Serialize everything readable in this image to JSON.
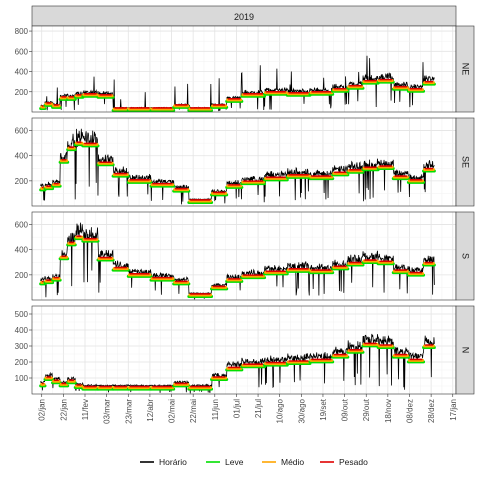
{
  "chart_data": {
    "type": "line",
    "title": "",
    "xlabel": "",
    "ylabel": "",
    "facet_column_label": "2019",
    "x_ticks": [
      "02/jan",
      "22/jan",
      "11/fev",
      "03/mar",
      "23/mar",
      "12/abr",
      "02/mai",
      "22/mai",
      "11/jun",
      "01/jul",
      "21/jul",
      "10/ago",
      "30/ago",
      "19/set",
      "09/out",
      "29/out",
      "18/nov",
      "08/dez",
      "28/dez",
      "17/jan"
    ],
    "x_tick_dates": [
      "2019-01-02",
      "2019-01-22",
      "2019-02-11",
      "2019-03-03",
      "2019-03-23",
      "2019-04-12",
      "2019-05-02",
      "2019-05-22",
      "2019-06-11",
      "2019-07-01",
      "2019-07-21",
      "2019-08-10",
      "2019-08-30",
      "2019-09-19",
      "2019-10-09",
      "2019-10-29",
      "2019-11-18",
      "2019-12-08",
      "2019-12-28",
      "2020-01-17"
    ],
    "xlim": [
      "2018-12-24",
      "2020-01-20"
    ],
    "grid": true,
    "legend_position": "bottom",
    "legend": [
      {
        "name": "Horário",
        "color": "#000000"
      },
      {
        "name": "Leve",
        "color": "#00e000"
      },
      {
        "name": "Médio",
        "color": "#ffa500"
      },
      {
        "name": "Pesado",
        "color": "#e00000"
      }
    ],
    "panels": [
      {
        "name": "NE",
        "ylim": [
          0,
          850
        ],
        "yticks": [
          200,
          400,
          600,
          800
        ],
        "segments": [
          {
            "start": "2019-01-01",
            "end": "2019-01-05",
            "value": 50
          },
          {
            "start": "2019-01-05",
            "end": "2019-01-12",
            "value": 80
          },
          {
            "start": "2019-01-12",
            "end": "2019-01-19",
            "value": 60
          },
          {
            "start": "2019-01-19",
            "end": "2019-01-26",
            "value": 140
          },
          {
            "start": "2019-01-26",
            "end": "2019-02-02",
            "value": 140
          },
          {
            "start": "2019-02-02",
            "end": "2019-02-09",
            "value": 160
          },
          {
            "start": "2019-02-09",
            "end": "2019-02-23",
            "value": 170
          },
          {
            "start": "2019-02-23",
            "end": "2019-03-09",
            "value": 160
          },
          {
            "start": "2019-03-09",
            "end": "2019-03-23",
            "value": 30
          },
          {
            "start": "2019-03-23",
            "end": "2019-04-13",
            "value": 30
          },
          {
            "start": "2019-04-13",
            "end": "2019-05-04",
            "value": 30
          },
          {
            "start": "2019-05-04",
            "end": "2019-05-18",
            "value": 60
          },
          {
            "start": "2019-05-18",
            "end": "2019-06-08",
            "value": 30
          },
          {
            "start": "2019-06-08",
            "end": "2019-06-22",
            "value": 60
          },
          {
            "start": "2019-06-22",
            "end": "2019-07-06",
            "value": 120
          },
          {
            "start": "2019-07-06",
            "end": "2019-07-27",
            "value": 170
          },
          {
            "start": "2019-07-27",
            "end": "2019-08-17",
            "value": 190
          },
          {
            "start": "2019-08-17",
            "end": "2019-09-07",
            "value": 180
          },
          {
            "start": "2019-09-07",
            "end": "2019-09-28",
            "value": 190
          },
          {
            "start": "2019-09-28",
            "end": "2019-10-12",
            "value": 220
          },
          {
            "start": "2019-10-12",
            "end": "2019-10-26",
            "value": 250
          },
          {
            "start": "2019-10-26",
            "end": "2019-11-09",
            "value": 300
          },
          {
            "start": "2019-11-09",
            "end": "2019-11-23",
            "value": 310
          },
          {
            "start": "2019-11-23",
            "end": "2019-12-07",
            "value": 240
          },
          {
            "start": "2019-12-07",
            "end": "2019-12-21",
            "value": 220
          },
          {
            "start": "2019-12-21",
            "end": "2019-12-31",
            "value": 290
          }
        ]
      },
      {
        "name": "SE",
        "ylim": [
          0,
          700
        ],
        "yticks": [
          200,
          400,
          600
        ],
        "segments": [
          {
            "start": "2019-01-01",
            "end": "2019-01-05",
            "value": 140
          },
          {
            "start": "2019-01-05",
            "end": "2019-01-12",
            "value": 150
          },
          {
            "start": "2019-01-12",
            "end": "2019-01-19",
            "value": 170
          },
          {
            "start": "2019-01-19",
            "end": "2019-01-26",
            "value": 360
          },
          {
            "start": "2019-01-26",
            "end": "2019-02-02",
            "value": 460
          },
          {
            "start": "2019-02-02",
            "end": "2019-02-09",
            "value": 500
          },
          {
            "start": "2019-02-09",
            "end": "2019-02-23",
            "value": 490
          },
          {
            "start": "2019-02-23",
            "end": "2019-03-09",
            "value": 340
          },
          {
            "start": "2019-03-09",
            "end": "2019-03-23",
            "value": 250
          },
          {
            "start": "2019-03-23",
            "end": "2019-04-13",
            "value": 200
          },
          {
            "start": "2019-04-13",
            "end": "2019-05-04",
            "value": 170
          },
          {
            "start": "2019-05-04",
            "end": "2019-05-18",
            "value": 130
          },
          {
            "start": "2019-05-18",
            "end": "2019-06-08",
            "value": 40
          },
          {
            "start": "2019-06-08",
            "end": "2019-06-22",
            "value": 100
          },
          {
            "start": "2019-06-22",
            "end": "2019-07-06",
            "value": 160
          },
          {
            "start": "2019-07-06",
            "end": "2019-07-27",
            "value": 190
          },
          {
            "start": "2019-07-27",
            "end": "2019-08-17",
            "value": 220
          },
          {
            "start": "2019-08-17",
            "end": "2019-09-07",
            "value": 240
          },
          {
            "start": "2019-09-07",
            "end": "2019-09-28",
            "value": 230
          },
          {
            "start": "2019-09-28",
            "end": "2019-10-12",
            "value": 260
          },
          {
            "start": "2019-10-12",
            "end": "2019-10-26",
            "value": 280
          },
          {
            "start": "2019-10-26",
            "end": "2019-11-09",
            "value": 300
          },
          {
            "start": "2019-11-09",
            "end": "2019-11-23",
            "value": 310
          },
          {
            "start": "2019-11-23",
            "end": "2019-12-07",
            "value": 230
          },
          {
            "start": "2019-12-07",
            "end": "2019-12-21",
            "value": 200
          },
          {
            "start": "2019-12-21",
            "end": "2019-12-31",
            "value": 290
          }
        ]
      },
      {
        "name": "S",
        "ylim": [
          0,
          700
        ],
        "yticks": [
          200,
          400,
          600
        ],
        "segments": [
          {
            "start": "2019-01-01",
            "end": "2019-01-05",
            "value": 140
          },
          {
            "start": "2019-01-05",
            "end": "2019-01-12",
            "value": 150
          },
          {
            "start": "2019-01-12",
            "end": "2019-01-19",
            "value": 170
          },
          {
            "start": "2019-01-19",
            "end": "2019-01-26",
            "value": 340
          },
          {
            "start": "2019-01-26",
            "end": "2019-02-02",
            "value": 450
          },
          {
            "start": "2019-02-02",
            "end": "2019-02-09",
            "value": 500
          },
          {
            "start": "2019-02-09",
            "end": "2019-02-23",
            "value": 480
          },
          {
            "start": "2019-02-23",
            "end": "2019-03-09",
            "value": 330
          },
          {
            "start": "2019-03-09",
            "end": "2019-03-23",
            "value": 250
          },
          {
            "start": "2019-03-23",
            "end": "2019-04-13",
            "value": 200
          },
          {
            "start": "2019-04-13",
            "end": "2019-05-04",
            "value": 170
          },
          {
            "start": "2019-05-04",
            "end": "2019-05-18",
            "value": 140
          },
          {
            "start": "2019-05-18",
            "end": "2019-06-08",
            "value": 40
          },
          {
            "start": "2019-06-08",
            "end": "2019-06-22",
            "value": 100
          },
          {
            "start": "2019-06-22",
            "end": "2019-07-06",
            "value": 160
          },
          {
            "start": "2019-07-06",
            "end": "2019-07-27",
            "value": 190
          },
          {
            "start": "2019-07-27",
            "end": "2019-08-17",
            "value": 220
          },
          {
            "start": "2019-08-17",
            "end": "2019-09-07",
            "value": 240
          },
          {
            "start": "2019-09-07",
            "end": "2019-09-28",
            "value": 230
          },
          {
            "start": "2019-09-28",
            "end": "2019-10-12",
            "value": 260
          },
          {
            "start": "2019-10-12",
            "end": "2019-10-26",
            "value": 290
          },
          {
            "start": "2019-10-26",
            "end": "2019-11-09",
            "value": 310
          },
          {
            "start": "2019-11-09",
            "end": "2019-11-23",
            "value": 300
          },
          {
            "start": "2019-11-23",
            "end": "2019-12-07",
            "value": 230
          },
          {
            "start": "2019-12-07",
            "end": "2019-12-21",
            "value": 210
          },
          {
            "start": "2019-12-21",
            "end": "2019-12-31",
            "value": 290
          }
        ]
      },
      {
        "name": "N",
        "ylim": [
          0,
          550
        ],
        "yticks": [
          100,
          200,
          300,
          400,
          500
        ],
        "segments": [
          {
            "start": "2019-01-01",
            "end": "2019-01-05",
            "value": 60
          },
          {
            "start": "2019-01-05",
            "end": "2019-01-12",
            "value": 100
          },
          {
            "start": "2019-01-12",
            "end": "2019-01-19",
            "value": 80
          },
          {
            "start": "2019-01-19",
            "end": "2019-01-26",
            "value": 60
          },
          {
            "start": "2019-01-26",
            "end": "2019-02-02",
            "value": 80
          },
          {
            "start": "2019-02-02",
            "end": "2019-02-09",
            "value": 50
          },
          {
            "start": "2019-02-09",
            "end": "2019-02-23",
            "value": 40
          },
          {
            "start": "2019-02-23",
            "end": "2019-03-09",
            "value": 40
          },
          {
            "start": "2019-03-09",
            "end": "2019-03-23",
            "value": 40
          },
          {
            "start": "2019-03-23",
            "end": "2019-04-13",
            "value": 40
          },
          {
            "start": "2019-04-13",
            "end": "2019-05-04",
            "value": 40
          },
          {
            "start": "2019-05-04",
            "end": "2019-05-18",
            "value": 60
          },
          {
            "start": "2019-05-18",
            "end": "2019-06-08",
            "value": 40
          },
          {
            "start": "2019-06-08",
            "end": "2019-06-22",
            "value": 100
          },
          {
            "start": "2019-06-22",
            "end": "2019-07-06",
            "value": 160
          },
          {
            "start": "2019-07-06",
            "end": "2019-07-27",
            "value": 180
          },
          {
            "start": "2019-07-27",
            "end": "2019-08-17",
            "value": 190
          },
          {
            "start": "2019-08-17",
            "end": "2019-09-07",
            "value": 200
          },
          {
            "start": "2019-09-07",
            "end": "2019-09-28",
            "value": 210
          },
          {
            "start": "2019-09-28",
            "end": "2019-10-12",
            "value": 240
          },
          {
            "start": "2019-10-12",
            "end": "2019-10-26",
            "value": 270
          },
          {
            "start": "2019-10-26",
            "end": "2019-11-09",
            "value": 310
          },
          {
            "start": "2019-11-09",
            "end": "2019-11-23",
            "value": 300
          },
          {
            "start": "2019-11-23",
            "end": "2019-12-07",
            "value": 240
          },
          {
            "start": "2019-12-07",
            "end": "2019-12-21",
            "value": 210
          },
          {
            "start": "2019-12-21",
            "end": "2019-12-31",
            "value": 300
          }
        ]
      }
    ]
  }
}
